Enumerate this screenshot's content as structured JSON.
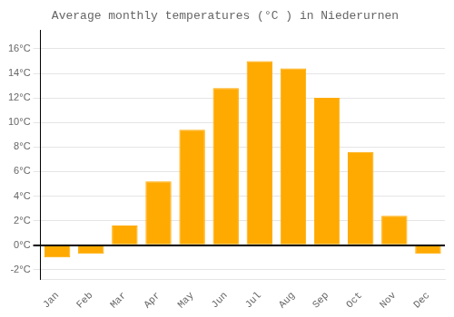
{
  "chart_data": {
    "type": "bar",
    "title": "Average monthly temperatures (°C ) in Niederurnen",
    "categories": [
      "Jan",
      "Feb",
      "Mar",
      "Apr",
      "May",
      "Jun",
      "Jul",
      "Aug",
      "Sep",
      "Oct",
      "Nov",
      "Dec"
    ],
    "values": [
      -1.0,
      -0.7,
      1.6,
      5.2,
      9.4,
      12.8,
      15.0,
      14.4,
      12.0,
      7.6,
      2.4,
      -0.7
    ],
    "color": "#FFAA00",
    "ylim": [
      -2.8,
      17.5
    ],
    "yticks": [
      {
        "value": -2,
        "label": "-2°C"
      },
      {
        "value": 0,
        "label": "0°C"
      },
      {
        "value": 2,
        "label": "2°C"
      },
      {
        "value": 4,
        "label": "4°C"
      },
      {
        "value": 6,
        "label": "6°C"
      },
      {
        "value": 8,
        "label": "8°C"
      },
      {
        "value": 10,
        "label": "10°C"
      },
      {
        "value": 12,
        "label": "12°C"
      },
      {
        "value": 14,
        "label": "14°C"
      },
      {
        "value": 16,
        "label": "16°C"
      }
    ],
    "grid": true
  }
}
